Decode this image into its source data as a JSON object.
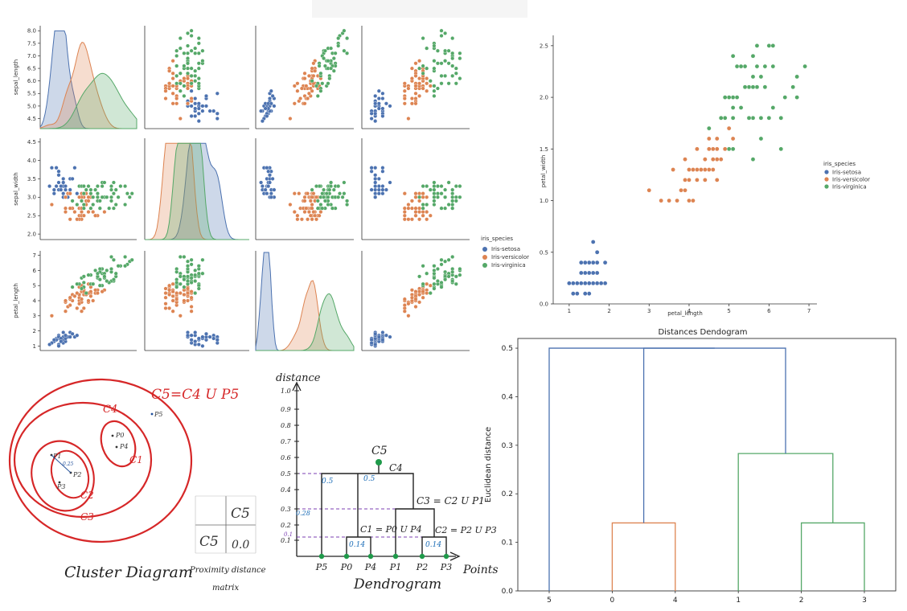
{
  "colors": {
    "setosa": "#4c72b0",
    "versicolor": "#dd8452",
    "virginica": "#55a868",
    "red_ink": "#d62728",
    "dendro_blue": "#4c72b0",
    "dendro_orange": "#dd8452",
    "dendro_green": "#55a868"
  },
  "chart_data": [
    {
      "type": "scatter",
      "subtype": "pairplot",
      "variables": [
        "sepal_length",
        "sepal_width",
        "petal_length"
      ],
      "variable_labels": [
        "sepal_length",
        "sepal_width",
        "petal_length"
      ],
      "ranges": {
        "sepal_length": [
          4.3,
          8.0
        ],
        "sepal_width": [
          2.0,
          4.4
        ],
        "petal_length": [
          1.0,
          7.0
        ]
      },
      "ticks": {
        "sepal_length": [
          "4.5",
          "5.0",
          "5.5",
          "6.0",
          "6.5",
          "7.0",
          "7.5",
          "8.0"
        ],
        "sepal_width": [
          "2.0",
          "2.5",
          "3.0",
          "3.5",
          "4.0",
          "4.5"
        ],
        "petal_length": [
          "1",
          "2",
          "3",
          "4",
          "5",
          "6",
          "7"
        ]
      },
      "diagonal": "kde",
      "legend": {
        "title": "iris_species",
        "placement": "right",
        "entries": [
          "Iris-setosa",
          "Iris-versicolor",
          "Iris-virginica"
        ]
      },
      "species_means": [
        {
          "name": "Iris-setosa",
          "sepal_length": 5.0,
          "sepal_width": 3.4,
          "petal_length": 1.46
        },
        {
          "name": "Iris-versicolor",
          "sepal_length": 5.94,
          "sepal_width": 2.77,
          "petal_length": 4.26
        },
        {
          "name": "Iris-virginica",
          "sepal_length": 6.59,
          "sepal_width": 2.97,
          "petal_length": 5.55
        }
      ]
    },
    {
      "type": "scatter",
      "xlabel": "petal_length",
      "ylabel": "petal_width",
      "xlim": [
        0.6,
        7.2
      ],
      "ylim": [
        0.0,
        2.6
      ],
      "xticks": [
        "1",
        "2",
        "3",
        "4",
        "5",
        "6",
        "7"
      ],
      "yticks": [
        "0.0",
        "0.5",
        "1.0",
        "1.5",
        "2.0",
        "2.5"
      ],
      "legend": {
        "title": "iris_species",
        "placement": "right",
        "entries": [
          "Iris-setosa",
          "Iris-versicolor",
          "Iris-virginica"
        ]
      },
      "series": [
        {
          "name": "Iris-setosa",
          "points": [
            [
              1.4,
              0.2
            ],
            [
              1.3,
              0.2
            ],
            [
              1.5,
              0.2
            ],
            [
              1.7,
              0.4
            ],
            [
              1.4,
              0.3
            ],
            [
              1.5,
              0.1
            ],
            [
              1.6,
              0.2
            ],
            [
              1.1,
              0.1
            ],
            [
              1.2,
              0.2
            ],
            [
              1.0,
              0.2
            ],
            [
              1.9,
              0.2
            ],
            [
              1.6,
              0.4
            ],
            [
              1.5,
              0.4
            ],
            [
              1.7,
              0.3
            ],
            [
              1.6,
              0.6
            ],
            [
              1.3,
              0.3
            ],
            [
              1.4,
              0.1
            ],
            [
              1.7,
              0.5
            ],
            [
              1.9,
              0.4
            ],
            [
              1.6,
              0.2
            ],
            [
              1.5,
              0.3
            ],
            [
              1.2,
              0.1
            ],
            [
              1.4,
              0.2
            ],
            [
              1.3,
              0.4
            ],
            [
              1.5,
              0.2
            ],
            [
              1.6,
              0.3
            ],
            [
              1.4,
              0.4
            ],
            [
              1.7,
              0.2
            ],
            [
              1.1,
              0.2
            ],
            [
              1.8,
              0.2
            ]
          ]
        },
        {
          "name": "Iris-versicolor",
          "points": [
            [
              4.7,
              1.4
            ],
            [
              4.5,
              1.5
            ],
            [
              4.9,
              1.5
            ],
            [
              4.0,
              1.3
            ],
            [
              4.6,
              1.5
            ],
            [
              4.5,
              1.3
            ],
            [
              4.7,
              1.6
            ],
            [
              3.3,
              1.0
            ],
            [
              4.6,
              1.3
            ],
            [
              3.9,
              1.4
            ],
            [
              3.5,
              1.0
            ],
            [
              4.2,
              1.5
            ],
            [
              4.0,
              1.0
            ],
            [
              4.7,
              1.4
            ],
            [
              3.6,
              1.3
            ],
            [
              4.4,
              1.4
            ],
            [
              4.5,
              1.5
            ],
            [
              4.1,
              1.0
            ],
            [
              4.5,
              1.5
            ],
            [
              3.9,
              1.1
            ],
            [
              4.8,
              1.8
            ],
            [
              4.0,
              1.3
            ],
            [
              4.9,
              1.5
            ],
            [
              4.7,
              1.2
            ],
            [
              4.3,
              1.3
            ],
            [
              4.4,
              1.4
            ],
            [
              4.8,
              1.4
            ],
            [
              5.0,
              1.7
            ],
            [
              4.5,
              1.5
            ],
            [
              3.5,
              1.0
            ],
            [
              3.8,
              1.1
            ],
            [
              3.7,
              1.0
            ],
            [
              3.9,
              1.2
            ],
            [
              5.1,
              1.6
            ],
            [
              4.5,
              1.5
            ],
            [
              4.5,
              1.6
            ],
            [
              4.7,
              1.5
            ],
            [
              4.4,
              1.3
            ],
            [
              4.1,
              1.3
            ],
            [
              4.0,
              1.3
            ],
            [
              4.4,
              1.2
            ],
            [
              4.6,
              1.4
            ],
            [
              4.0,
              1.2
            ],
            [
              3.3,
              1.0
            ],
            [
              4.2,
              1.3
            ],
            [
              4.2,
              1.2
            ],
            [
              4.3,
              1.3
            ],
            [
              3.0,
              1.1
            ],
            [
              4.1,
              1.3
            ],
            [
              4.6,
              1.5
            ]
          ]
        },
        {
          "name": "Iris-virginica",
          "points": [
            [
              6.0,
              2.5
            ],
            [
              5.1,
              1.9
            ],
            [
              5.9,
              2.1
            ],
            [
              5.6,
              1.8
            ],
            [
              5.8,
              2.2
            ],
            [
              6.6,
              2.1
            ],
            [
              4.5,
              1.7
            ],
            [
              6.3,
              1.8
            ],
            [
              5.8,
              1.8
            ],
            [
              6.1,
              2.5
            ],
            [
              5.1,
              2.0
            ],
            [
              5.3,
              1.9
            ],
            [
              5.5,
              2.1
            ],
            [
              5.0,
              2.0
            ],
            [
              5.1,
              2.4
            ],
            [
              5.3,
              2.3
            ],
            [
              5.5,
              1.8
            ],
            [
              6.7,
              2.2
            ],
            [
              6.9,
              2.3
            ],
            [
              5.0,
              1.5
            ],
            [
              5.7,
              2.3
            ],
            [
              4.9,
              2.0
            ],
            [
              6.7,
              2.0
            ],
            [
              4.9,
              1.8
            ],
            [
              5.7,
              2.1
            ],
            [
              6.0,
              1.8
            ],
            [
              4.8,
              1.8
            ],
            [
              5.6,
              2.1
            ],
            [
              5.8,
              1.6
            ],
            [
              6.1,
              1.9
            ],
            [
              6.4,
              2.0
            ],
            [
              5.6,
              2.2
            ],
            [
              5.1,
              1.5
            ],
            [
              5.6,
              1.4
            ],
            [
              6.1,
              2.3
            ],
            [
              5.6,
              2.4
            ],
            [
              5.5,
              1.8
            ],
            [
              5.4,
              2.1
            ],
            [
              5.6,
              2.4
            ],
            [
              5.9,
              2.3
            ],
            [
              5.7,
              2.5
            ],
            [
              5.2,
              2.3
            ],
            [
              5.4,
              2.3
            ],
            [
              6.9,
              2.3
            ],
            [
              6.3,
              1.8
            ],
            [
              5.2,
              2.0
            ],
            [
              6.3,
              1.5
            ],
            [
              5.8,
              1.6
            ],
            [
              5.3,
              2.3
            ],
            [
              5.1,
              1.8
            ]
          ]
        }
      ]
    },
    {
      "type": "dendrogram",
      "title": "Distances Dendogram",
      "ylabel": "Euclidean distance",
      "ylim": [
        0.0,
        0.52
      ],
      "yticks": [
        "0.0",
        "0.1",
        "0.2",
        "0.3",
        "0.4",
        "0.5"
      ],
      "leaves": [
        "5",
        "0",
        "4",
        "1",
        "2",
        "3"
      ],
      "merges": [
        {
          "left": "0",
          "right": "4",
          "height": 0.14,
          "color": "orange"
        },
        {
          "left": "2",
          "right": "3",
          "height": 0.14,
          "color": "green"
        },
        {
          "left": "1",
          "right": "{2,3}",
          "height": 0.283,
          "color": "green"
        },
        {
          "left": "{0,4}",
          "right": "{1,2,3}",
          "height": 0.5,
          "color": "blue"
        },
        {
          "left": "5",
          "right": "{0,4,1,2,3}",
          "height": 0.5,
          "color": "blue"
        }
      ]
    }
  ],
  "sketch": {
    "title_formula": "C5=C4 U P5",
    "cluster_labels": [
      "C4",
      "C1",
      "C2",
      "C3"
    ],
    "point_labels": [
      "P0",
      "P4",
      "P1",
      "P2",
      "P3",
      "P5"
    ],
    "annotation_025": "0.25",
    "caption_cluster": "Cluster Diagram",
    "caption_proximity_line1": "Proximity distance",
    "caption_proximity_line2": "matrix",
    "matrix_cells": [
      "C5",
      "C5",
      "0.0"
    ],
    "dendro_axis_label": "distance",
    "dendro_y_ticks": [
      "1.0",
      "0.9",
      "0.8",
      "0.7",
      "0.6",
      "0.5",
      "0.4",
      "0.3",
      "0.2",
      "0.1"
    ],
    "dendro_x_label": "Points",
    "dendro_caption": "Dendrogram",
    "dendro_leaves": [
      "P5",
      "P0",
      "P4",
      "P1",
      "P2",
      "P3"
    ],
    "dendro_labels": {
      "c5": "C5",
      "c4": "C4",
      "c3": "C3 = C2 U P1",
      "c1": "C1 = P0 U P4",
      "c2": "C2 = P2 U P3",
      "v05a": "0.5",
      "v05b": "0.5",
      "v028": "0.28",
      "v014a": "0.14",
      "v014b": "0.14",
      "v01": "0.1"
    }
  }
}
